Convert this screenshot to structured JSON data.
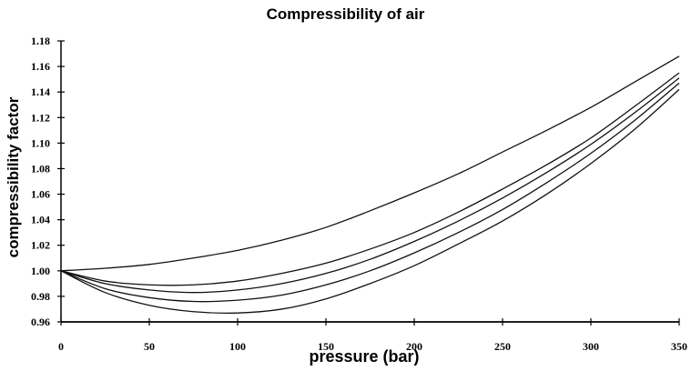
{
  "chart_data": {
    "type": "line",
    "title": "Compressibility of air",
    "xlabel": "pressure (bar)",
    "ylabel": "compressibility factor",
    "xlim": [
      0,
      350
    ],
    "ylim": [
      0.96,
      1.18
    ],
    "xticks": [
      0,
      50,
      100,
      150,
      200,
      250,
      300,
      350
    ],
    "yticks": [
      0.96,
      0.98,
      1.0,
      1.02,
      1.04,
      1.06,
      1.08,
      1.1,
      1.12,
      1.14,
      1.16,
      1.18
    ],
    "ytick_labels": [
      "0.96",
      "0.98",
      "1.00",
      "1.02",
      "1.04",
      "1.06",
      "1.08",
      "1.10",
      "1.12",
      "1.14",
      "1.16",
      "1.18"
    ],
    "grid": false,
    "series": [
      {
        "x": [
          0,
          25,
          50,
          75,
          100,
          125,
          150,
          175,
          200,
          225,
          250,
          275,
          300,
          325,
          350
        ],
        "y": [
          1.0,
          1.002,
          1.005,
          1.01,
          1.016,
          1.024,
          1.034,
          1.047,
          1.061,
          1.076,
          1.093,
          1.11,
          1.128,
          1.148,
          1.168
        ]
      },
      {
        "x": [
          0,
          25,
          50,
          75,
          100,
          125,
          150,
          175,
          200,
          225,
          250,
          275,
          300,
          325,
          350
        ],
        "y": [
          1.0,
          0.992,
          0.989,
          0.989,
          0.992,
          0.998,
          1.006,
          1.017,
          1.03,
          1.046,
          1.064,
          1.083,
          1.104,
          1.129,
          1.155
        ]
      },
      {
        "x": [
          0,
          25,
          50,
          75,
          100,
          125,
          150,
          175,
          200,
          225,
          250,
          275,
          300,
          325,
          350
        ],
        "y": [
          1.0,
          0.99,
          0.985,
          0.983,
          0.985,
          0.99,
          0.998,
          1.009,
          1.023,
          1.039,
          1.057,
          1.077,
          1.099,
          1.124,
          1.151
        ]
      },
      {
        "x": [
          0,
          25,
          50,
          75,
          100,
          125,
          150,
          175,
          200,
          225,
          250,
          275,
          300,
          325,
          350
        ],
        "y": [
          1.0,
          0.986,
          0.979,
          0.976,
          0.977,
          0.981,
          0.989,
          1.0,
          1.014,
          1.03,
          1.048,
          1.069,
          1.092,
          1.118,
          1.147
        ]
      },
      {
        "x": [
          0,
          25,
          50,
          75,
          100,
          125,
          150,
          175,
          200,
          225,
          250,
          275,
          300,
          325,
          350
        ],
        "y": [
          1.0,
          0.983,
          0.973,
          0.968,
          0.967,
          0.97,
          0.978,
          0.99,
          1.004,
          1.021,
          1.039,
          1.06,
          1.084,
          1.111,
          1.142
        ]
      }
    ]
  }
}
